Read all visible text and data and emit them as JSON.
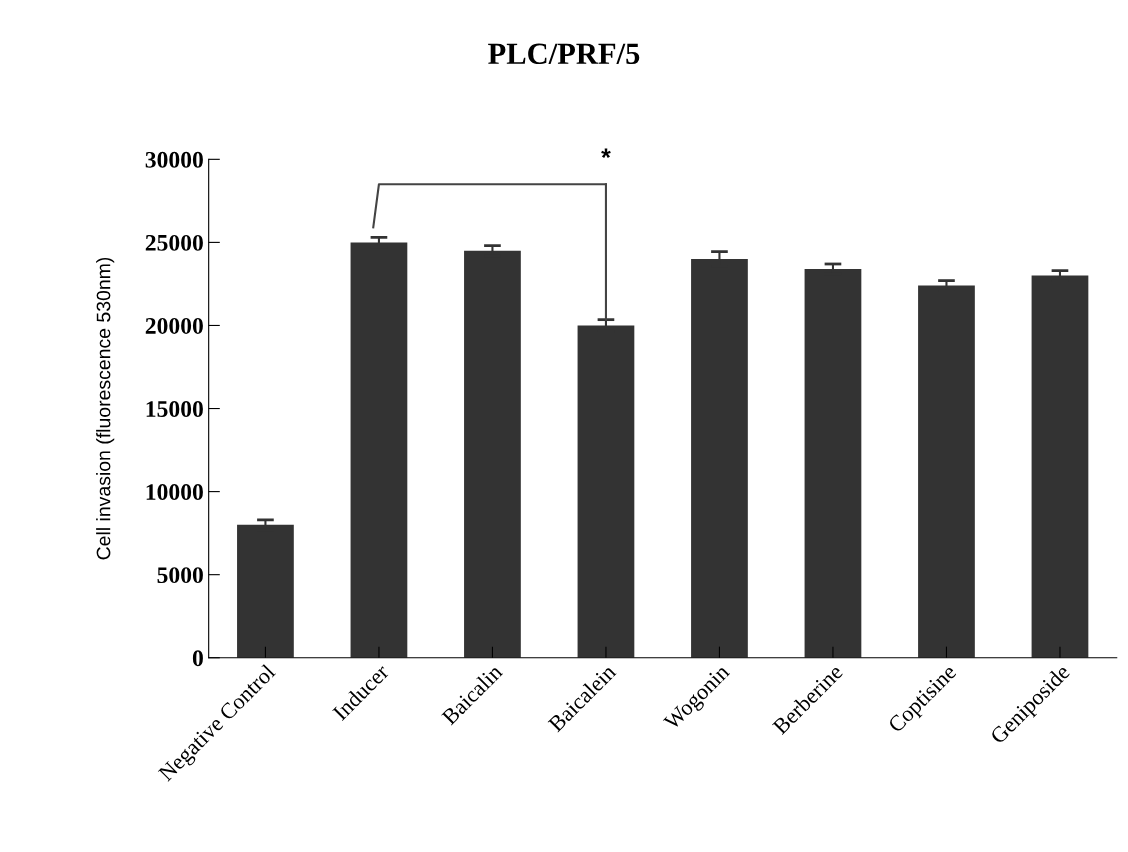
{
  "chart_data": {
    "type": "bar",
    "title": "PLC/PRF/5",
    "ylabel": "Cell invasion (fluorescence 530nm)",
    "categories": [
      "Negative Control",
      "Inducer",
      "Baicalin",
      "Baicalein",
      "Wogonin",
      "Berberine",
      "Coptisine",
      "Geniposide"
    ],
    "values": [
      8000,
      25000,
      24500,
      20000,
      24000,
      23400,
      22400,
      23000
    ],
    "errors": [
      300,
      300,
      300,
      350,
      450,
      300,
      300,
      300
    ],
    "color": "#333333",
    "ylim": [
      0,
      30000
    ],
    "yticks": [
      0,
      5000,
      10000,
      15000,
      20000,
      25000,
      30000
    ],
    "grid": false,
    "legend": false,
    "annotations": [
      {
        "text": "*",
        "x": "Baicalein",
        "y": 20350
      }
    ]
  }
}
